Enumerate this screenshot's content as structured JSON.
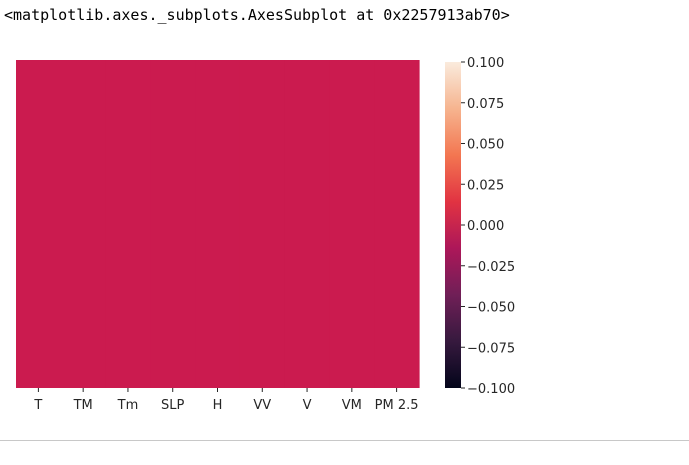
{
  "output": {
    "repr_text": "<matplotlib.axes._subplots.AxesSubplot at 0x2257913ab70>"
  },
  "chart_data": {
    "type": "heatmap",
    "columns": [
      "T",
      "TM",
      "Tm",
      "SLP",
      "H",
      "VV",
      "V",
      "VM",
      "PM 2.5"
    ],
    "value": 0.0,
    "cell_color": "#cb1b4f",
    "colorbar": {
      "vmin": -0.1,
      "vmax": 0.1,
      "ticks": [
        "−0.100",
        "−0.075",
        "−0.050",
        "−0.025",
        "0.000",
        "0.025",
        "0.050",
        "0.075",
        "0.100"
      ],
      "tick_values": [
        -0.1,
        -0.075,
        -0.05,
        -0.025,
        0.0,
        0.025,
        0.05,
        0.075,
        0.1
      ],
      "colormap": "rocket",
      "colormap_stops": [
        "#03051a",
        "#36193e",
        "#701f57",
        "#ad1759",
        "#e13342",
        "#f37651",
        "#f6b48f",
        "#faebdd"
      ]
    },
    "yticklabels": false,
    "title": "",
    "xlabel": "",
    "ylabel": ""
  }
}
